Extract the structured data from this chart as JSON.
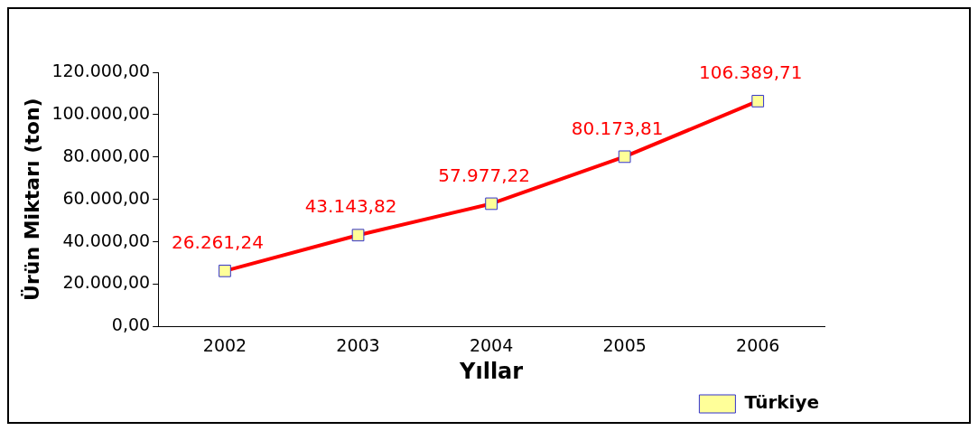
{
  "chart_data": {
    "type": "line",
    "xlabel": "Yıllar",
    "ylabel": "Ürün Miktarı (ton)",
    "categories": [
      "2002",
      "2003",
      "2004",
      "2005",
      "2006"
    ],
    "series": [
      {
        "name": "Türkiye",
        "color": "#ff0000",
        "values": [
          26261.24,
          43143.82,
          57977.22,
          80173.81,
          106389.71
        ],
        "value_labels": [
          "26.261,24",
          "43.143,82",
          "57.977,22",
          "80.173,81",
          "106.389,71"
        ]
      }
    ],
    "ylim": [
      0,
      120000
    ],
    "yticks": [
      {
        "value": 0,
        "label": "0,00"
      },
      {
        "value": 20000,
        "label": "20.000,00"
      },
      {
        "value": 40000,
        "label": "40.000,00"
      },
      {
        "value": 60000,
        "label": "60.000,00"
      },
      {
        "value": 80000,
        "label": "80.000,00"
      },
      {
        "value": 100000,
        "label": "100.000,00"
      },
      {
        "value": 120000,
        "label": "120.000,00"
      }
    ],
    "grid": false,
    "legend": "bottom right",
    "marker": "square",
    "line_style": "solid"
  }
}
